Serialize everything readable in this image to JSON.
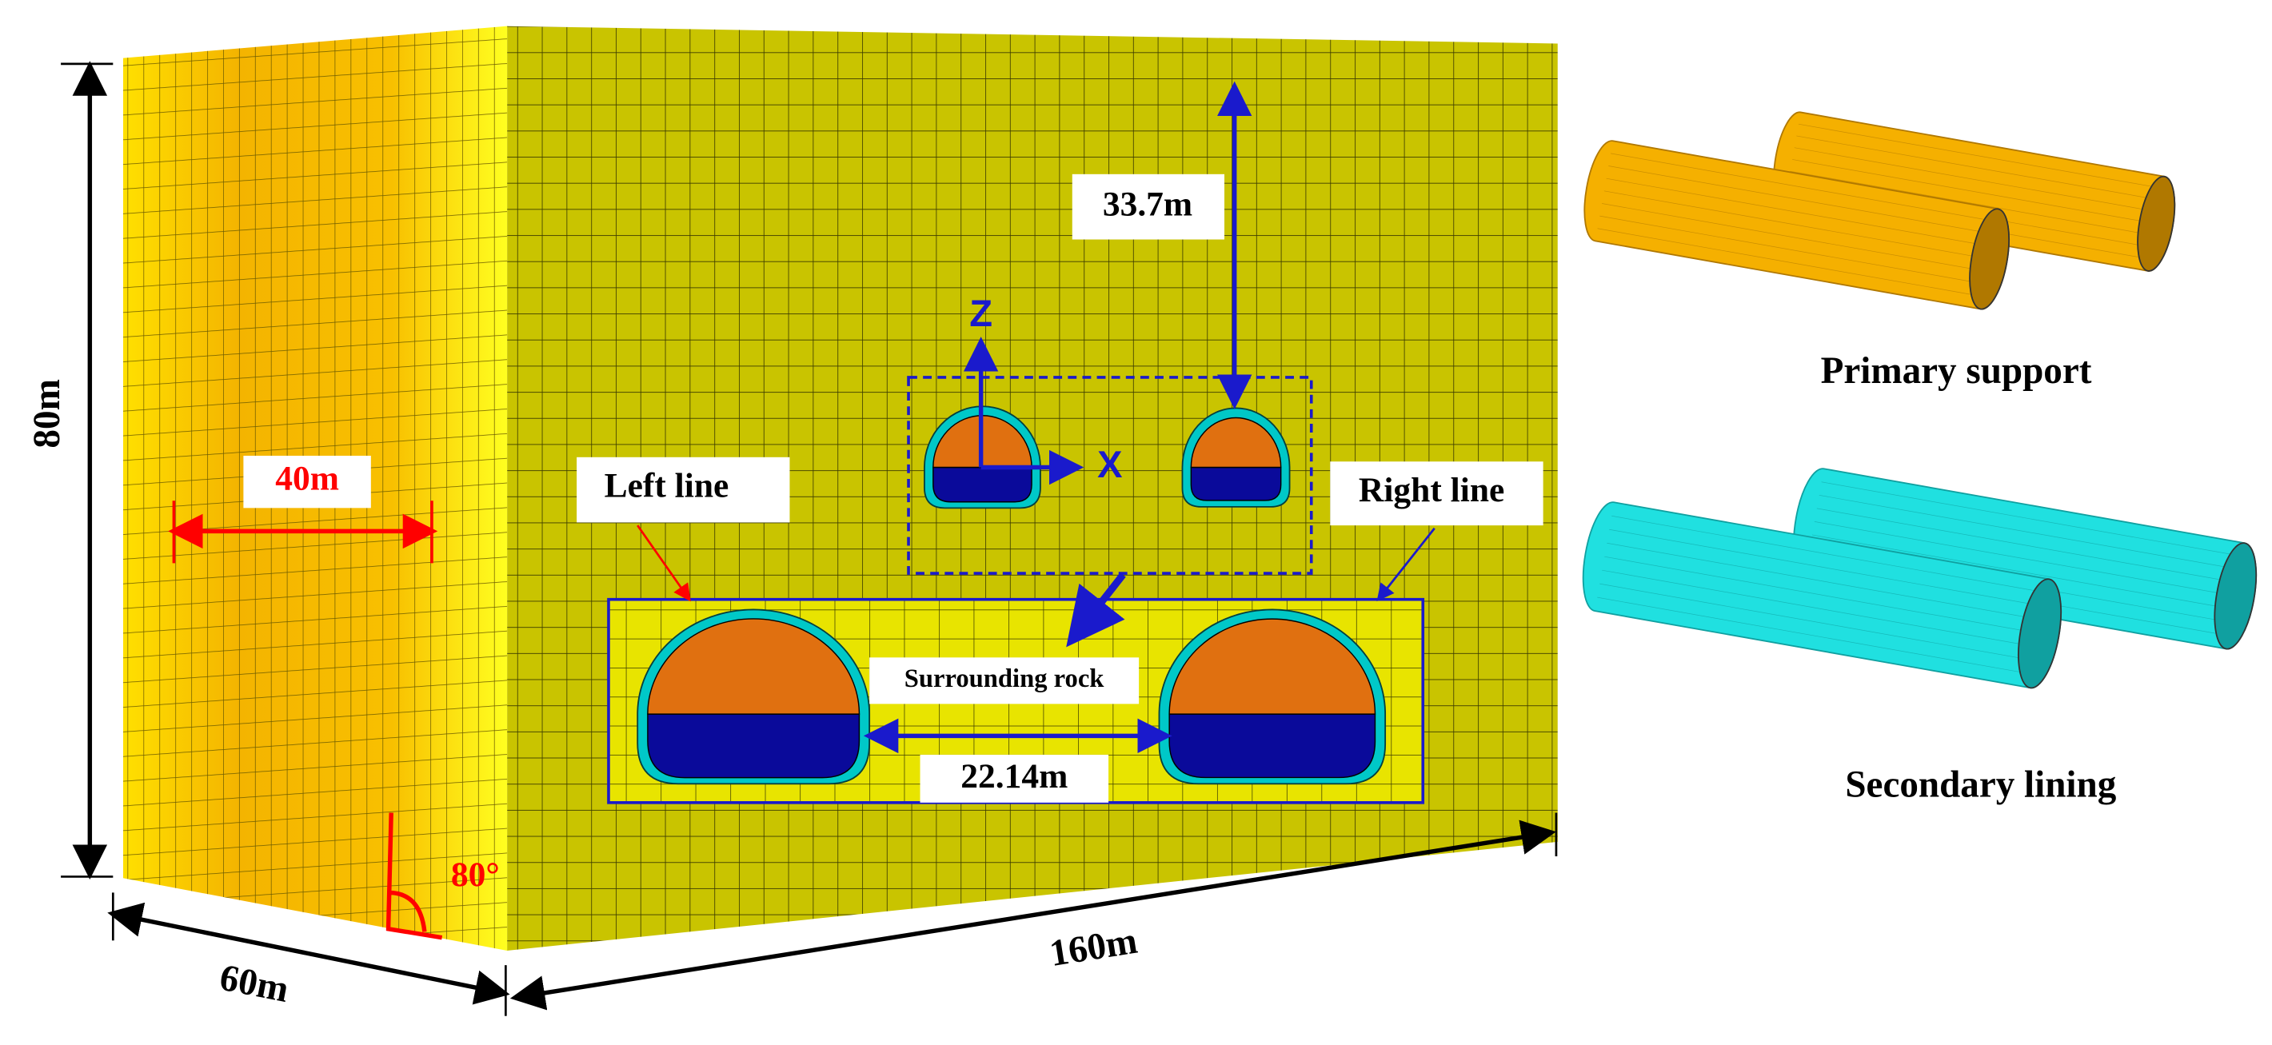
{
  "dimensions": {
    "height": "80m",
    "offset": "40m",
    "angle": "80°",
    "width": "60m",
    "length": "160m",
    "depth": "33.7m",
    "spacing": "22.14m"
  },
  "axes": {
    "z": "Z",
    "x": "X"
  },
  "labels": {
    "left_line": "Left line",
    "right_line": "Right line",
    "surrounding_rock": "Surrounding rock"
  },
  "legend": {
    "primary_support": "Primary support",
    "secondary_lining": "Secondary lining"
  }
}
